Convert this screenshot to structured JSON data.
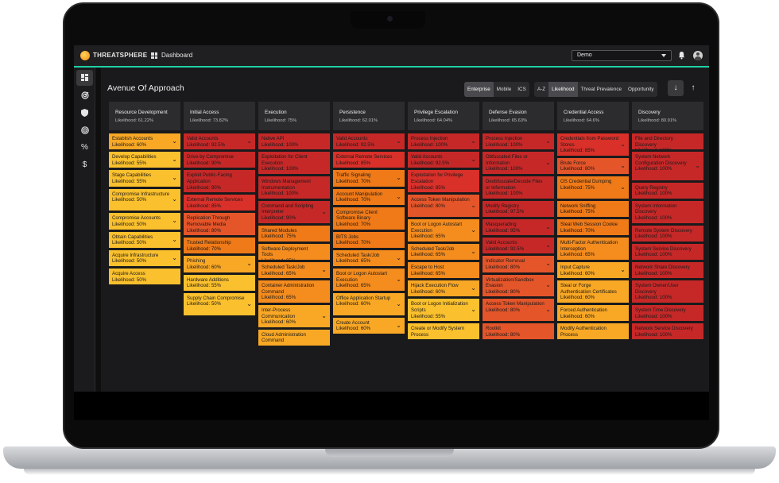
{
  "app": {
    "brand": "THREATSPHERE",
    "nav_title": "Dashboard",
    "org_select": "Demo"
  },
  "page": {
    "title": "Avenue Of Approach",
    "platform_tabs": [
      "Enterprise",
      "Mobile",
      "ICS"
    ],
    "platform_selected": "Enterprise",
    "sort_tabs": [
      "A-Z",
      "Likelihood",
      "Threat Prevalence",
      "Opportunity"
    ],
    "sort_selected": "Likelihood"
  },
  "sidebar": {
    "icons": [
      "dashboard-icon",
      "radar-icon",
      "shield-icon",
      "target-icon",
      "percent-icon",
      "dollar-icon"
    ]
  },
  "colors": {
    "accent": "#1fd0a6",
    "low": "#fbc02d",
    "mid": "#f58c1e",
    "high": "#d9302a"
  },
  "columns": [
    {
      "name": "Resource Development",
      "likelihood": "Likelihood: 61.22%",
      "cards": [
        {
          "name": "Establish Accounts",
          "likelihood": "Likelihood: 60%",
          "chev": true,
          "lines": 2,
          "color": "c-ya"
        },
        {
          "name": "Develop Capabilities",
          "likelihood": "Likelihood: 55%",
          "chev": true,
          "lines": 2,
          "color": "c-y"
        },
        {
          "name": "Stage Capabilities",
          "likelihood": "Likelihood: 55%",
          "chev": true,
          "lines": 2,
          "color": "c-y"
        },
        {
          "name": "Compromise Infrastructure",
          "likelihood": "Likelihood: 50%",
          "chev": true,
          "lines": 3,
          "color": "c-y"
        },
        {
          "name": "Compromise Accounts",
          "likelihood": "Likelihood: 50%",
          "chev": true,
          "lines": 2,
          "color": "c-y"
        },
        {
          "name": "Obtain Capabilities",
          "likelihood": "Likelihood: 50%",
          "chev": true,
          "lines": 2,
          "color": "c-y"
        },
        {
          "name": "Acquire Infrastructure",
          "likelihood": "Likelihood: 50%",
          "chev": true,
          "lines": 2,
          "color": "c-y"
        },
        {
          "name": "Acquire Access",
          "likelihood": "Likelihood: 50%",
          "chev": false,
          "lines": 2,
          "color": "c-y"
        }
      ]
    },
    {
      "name": "Initial Access",
      "likelihood": "Likelihood: 73.82%",
      "cards": [
        {
          "name": "Valid Accounts",
          "likelihood": "Likelihood: 92.5%",
          "chev": true,
          "lines": 2,
          "color": "c-rd"
        },
        {
          "name": "Drive-by Compromise",
          "likelihood": "Likelihood: 90%",
          "chev": false,
          "lines": 2,
          "color": "c-rd"
        },
        {
          "name": "Exploit Public-Facing Application",
          "likelihood": "Likelihood: 90%",
          "chev": false,
          "lines": 3,
          "color": "c-rd"
        },
        {
          "name": "External Remote Services",
          "likelihood": "Likelihood: 85%",
          "chev": false,
          "lines": 2,
          "color": "c-r"
        },
        {
          "name": "Replication Through Removable Media",
          "likelihood": "Likelihood: 80%",
          "chev": false,
          "lines": 3,
          "color": "c-ro"
        },
        {
          "name": "Trusted Relationship",
          "likelihood": "Likelihood: 70%",
          "chev": false,
          "lines": 2,
          "color": "c-oa"
        },
        {
          "name": "Phishing",
          "likelihood": "Likelihood: 60%",
          "chev": true,
          "lines": 2,
          "color": "c-ya"
        },
        {
          "name": "Hardware Additions",
          "likelihood": "Likelihood: 55%",
          "chev": false,
          "lines": 2,
          "color": "c-y"
        },
        {
          "name": "Supply Chain Compromise",
          "likelihood": "Likelihood: 50%",
          "chev": true,
          "lines": 3,
          "color": "c-y"
        }
      ]
    },
    {
      "name": "Execution",
      "likelihood": "Likelihood: 75%",
      "cards": [
        {
          "name": "Native API",
          "likelihood": "Likelihood: 100%",
          "chev": false,
          "lines": 2,
          "color": "c-rd"
        },
        {
          "name": "Exploitation for Client Execution",
          "likelihood": "Likelihood: 100%",
          "chev": false,
          "lines": 3,
          "color": "c-rd"
        },
        {
          "name": "Windows Management Instrumentation",
          "likelihood": "Likelihood: 100%",
          "chev": false,
          "lines": 3,
          "color": "c-rd"
        },
        {
          "name": "Command and Scripting Interpreter",
          "likelihood": "Likelihood: 90%",
          "chev": true,
          "lines": 3,
          "color": "c-rd"
        },
        {
          "name": "Shared Modules",
          "likelihood": "Likelihood: 75%",
          "chev": false,
          "lines": 2,
          "color": "c-oa"
        },
        {
          "name": "Software Deployment Tools",
          "likelihood": "Likelihood: 65%",
          "chev": false,
          "lines": 2,
          "color": "c-o"
        },
        {
          "name": "Scheduled Task/Job",
          "likelihood": "Likelihood: 65%",
          "chev": true,
          "lines": 2,
          "color": "c-o"
        },
        {
          "name": "Container Administration Command",
          "likelihood": "Likelihood: 65%",
          "chev": false,
          "lines": 3,
          "color": "c-o"
        },
        {
          "name": "Inter-Process Communication",
          "likelihood": "Likelihood: 60%",
          "chev": true,
          "lines": 3,
          "color": "c-ya"
        },
        {
          "name": "Cloud Administration Command",
          "likelihood": "",
          "chev": false,
          "lines": 2,
          "color": "c-ya"
        }
      ]
    },
    {
      "name": "Persistence",
      "likelihood": "Likelihood: 62.01%",
      "cards": [
        {
          "name": "Valid Accounts",
          "likelihood": "Likelihood: 92.5%",
          "chev": true,
          "lines": 2,
          "color": "c-rd"
        },
        {
          "name": "External Remote Services",
          "likelihood": "Likelihood: 85%",
          "chev": false,
          "lines": 2,
          "color": "c-r"
        },
        {
          "name": "Traffic Signaling",
          "likelihood": "Likelihood: 70%",
          "chev": true,
          "lines": 2,
          "color": "c-oa"
        },
        {
          "name": "Account Manipulation",
          "likelihood": "Likelihood: 70%",
          "chev": true,
          "lines": 2,
          "color": "c-oa"
        },
        {
          "name": "Compromise Client Software Binary",
          "likelihood": "Likelihood: 70%",
          "chev": false,
          "lines": 3,
          "color": "c-oa"
        },
        {
          "name": "BITS Jobs",
          "likelihood": "Likelihood: 70%",
          "chev": false,
          "lines": 2,
          "color": "c-oa"
        },
        {
          "name": "Scheduled Task/Job",
          "likelihood": "Likelihood: 65%",
          "chev": true,
          "lines": 2,
          "color": "c-o"
        },
        {
          "name": "Boot or Logon Autostart Execution",
          "likelihood": "Likelihood: 65%",
          "chev": true,
          "lines": 3,
          "color": "c-o"
        },
        {
          "name": "Office Application Startup",
          "likelihood": "Likelihood: 60%",
          "chev": true,
          "lines": 3,
          "color": "c-ya"
        },
        {
          "name": "Create Account",
          "likelihood": "Likelihood: 60%",
          "chev": true,
          "lines": 2,
          "color": "c-ya"
        }
      ]
    },
    {
      "name": "Privilege Escalation",
      "likelihood": "Likelihood: 64.04%",
      "cards": [
        {
          "name": "Process Injection",
          "likelihood": "Likelihood: 100%",
          "chev": true,
          "lines": 2,
          "color": "c-rd"
        },
        {
          "name": "Valid Accounts",
          "likelihood": "Likelihood: 92.5%",
          "chev": true,
          "lines": 2,
          "color": "c-rd"
        },
        {
          "name": "Exploitation for Privilege Escalation",
          "likelihood": "Likelihood: 85%",
          "chev": false,
          "lines": 3,
          "color": "c-r"
        },
        {
          "name": "Access Token Manipulation",
          "likelihood": "Likelihood: 80%",
          "chev": true,
          "lines": 3,
          "color": "c-ro"
        },
        {
          "name": "Boot or Logon Autostart Execution",
          "likelihood": "Likelihood: 65%",
          "chev": true,
          "lines": 3,
          "color": "c-o"
        },
        {
          "name": "Scheduled Task/Job",
          "likelihood": "Likelihood: 65%",
          "chev": true,
          "lines": 2,
          "color": "c-o"
        },
        {
          "name": "Escape to Host",
          "likelihood": "Likelihood: 65%",
          "chev": false,
          "lines": 2,
          "color": "c-o"
        },
        {
          "name": "Hijack Execution Flow",
          "likelihood": "Likelihood: 60%",
          "chev": true,
          "lines": 2,
          "color": "c-ya"
        },
        {
          "name": "Boot or Logon Initialization Scripts",
          "likelihood": "Likelihood: 55%",
          "chev": true,
          "lines": 3,
          "color": "c-y"
        },
        {
          "name": "Create or Modify System Process",
          "likelihood": "",
          "chev": false,
          "lines": 2,
          "color": "c-y"
        }
      ]
    },
    {
      "name": "Defense Evasion",
      "likelihood": "Likelihood: 65.63%",
      "cards": [
        {
          "name": "Process Injection",
          "likelihood": "Likelihood: 100%",
          "chev": true,
          "lines": 2,
          "color": "c-rd"
        },
        {
          "name": "Obfuscated Files or Information",
          "likelihood": "Likelihood: 100%",
          "chev": true,
          "lines": 3,
          "color": "c-rd"
        },
        {
          "name": "Deobfuscate/Decode Files or Information",
          "likelihood": "Likelihood: 100%",
          "chev": false,
          "lines": 3,
          "color": "c-rd"
        },
        {
          "name": "Modify Registry",
          "likelihood": "Likelihood: 97.5%",
          "chev": false,
          "lines": 2,
          "color": "c-rd"
        },
        {
          "name": "Masquerading",
          "likelihood": "Likelihood: 95%",
          "chev": true,
          "lines": 2,
          "color": "c-rd"
        },
        {
          "name": "Valid Accounts",
          "likelihood": "Likelihood: 92.5%",
          "chev": true,
          "lines": 2,
          "color": "c-rd"
        },
        {
          "name": "Indicator Removal",
          "likelihood": "Likelihood: 80%",
          "chev": true,
          "lines": 2,
          "color": "c-ro"
        },
        {
          "name": "Virtualization/Sandbox Evasion",
          "likelihood": "Likelihood: 80%",
          "chev": true,
          "lines": 3,
          "color": "c-ro"
        },
        {
          "name": "Access Token Manipulation",
          "likelihood": "Likelihood: 80%",
          "chev": true,
          "lines": 3,
          "color": "c-ro"
        },
        {
          "name": "Rootkit",
          "likelihood": "Likelihood: 80%",
          "chev": false,
          "lines": 2,
          "color": "c-ro"
        }
      ]
    },
    {
      "name": "Credential Access",
      "likelihood": "Likelihood: 64.6%",
      "cards": [
        {
          "name": "Credentials from Password Stores",
          "likelihood": "Likelihood: 85%",
          "chev": true,
          "lines": 3,
          "color": "c-r"
        },
        {
          "name": "Brute Force",
          "likelihood": "Likelihood: 80%",
          "chev": true,
          "lines": 2,
          "color": "c-ro"
        },
        {
          "name": "OS Credential Dumping",
          "likelihood": "Likelihood: 75%",
          "chev": true,
          "lines": 3,
          "color": "c-oa"
        },
        {
          "name": "Network Sniffing",
          "likelihood": "Likelihood: 75%",
          "chev": false,
          "lines": 2,
          "color": "c-oa"
        },
        {
          "name": "Steal Web Session Cookie",
          "likelihood": "Likelihood: 70%",
          "chev": false,
          "lines": 2,
          "color": "c-oa"
        },
        {
          "name": "Multi-Factor Authentication Interception",
          "likelihood": "Likelihood: 65%",
          "chev": false,
          "lines": 3,
          "color": "c-o"
        },
        {
          "name": "Input Capture",
          "likelihood": "Likelihood: 60%",
          "chev": true,
          "lines": 2,
          "color": "c-ya"
        },
        {
          "name": "Steal or Forge Authentication Certificates",
          "likelihood": "Likelihood: 60%",
          "chev": false,
          "lines": 3,
          "color": "c-ya"
        },
        {
          "name": "Forced Authentication",
          "likelihood": "Likelihood: 60%",
          "chev": false,
          "lines": 2,
          "color": "c-ya"
        },
        {
          "name": "Modify Authentication Process",
          "likelihood": "",
          "chev": false,
          "lines": 2,
          "color": "c-ya"
        }
      ]
    },
    {
      "name": "Discovery",
      "likelihood": "Likelihood: 80.91%",
      "cards": [
        {
          "name": "File and Directory Discovery",
          "likelihood": "Likelihood: 100%",
          "chev": false,
          "lines": 2,
          "color": "c-rd"
        },
        {
          "name": "System Network Configuration Discovery",
          "likelihood": "Likelihood: 100%",
          "chev": true,
          "lines": 4,
          "color": "c-rd"
        },
        {
          "name": "Query Registry",
          "likelihood": "Likelihood: 100%",
          "chev": false,
          "lines": 2,
          "color": "c-rd"
        },
        {
          "name": "System Information Discovery",
          "likelihood": "Likelihood: 100%",
          "chev": false,
          "lines": 3,
          "color": "c-rd"
        },
        {
          "name": "Remote System Discovery",
          "likelihood": "Likelihood: 100%",
          "chev": false,
          "lines": 2,
          "color": "c-rd"
        },
        {
          "name": "System Service Discovery",
          "likelihood": "Likelihood: 100%",
          "chev": false,
          "lines": 2,
          "color": "c-rd"
        },
        {
          "name": "Network Share Discovery",
          "likelihood": "Likelihood: 100%",
          "chev": false,
          "lines": 2,
          "color": "c-rd"
        },
        {
          "name": "System Owner/User Discovery",
          "likelihood": "Likelihood: 100%",
          "chev": false,
          "lines": 3,
          "color": "c-rd"
        },
        {
          "name": "System Time Discovery",
          "likelihood": "Likelihood: 100%",
          "chev": false,
          "lines": 2,
          "color": "c-rd"
        },
        {
          "name": "Network Service Discovery",
          "likelihood": "Likelihood: 100%",
          "chev": false,
          "lines": 2,
          "color": "c-rd"
        }
      ]
    }
  ]
}
